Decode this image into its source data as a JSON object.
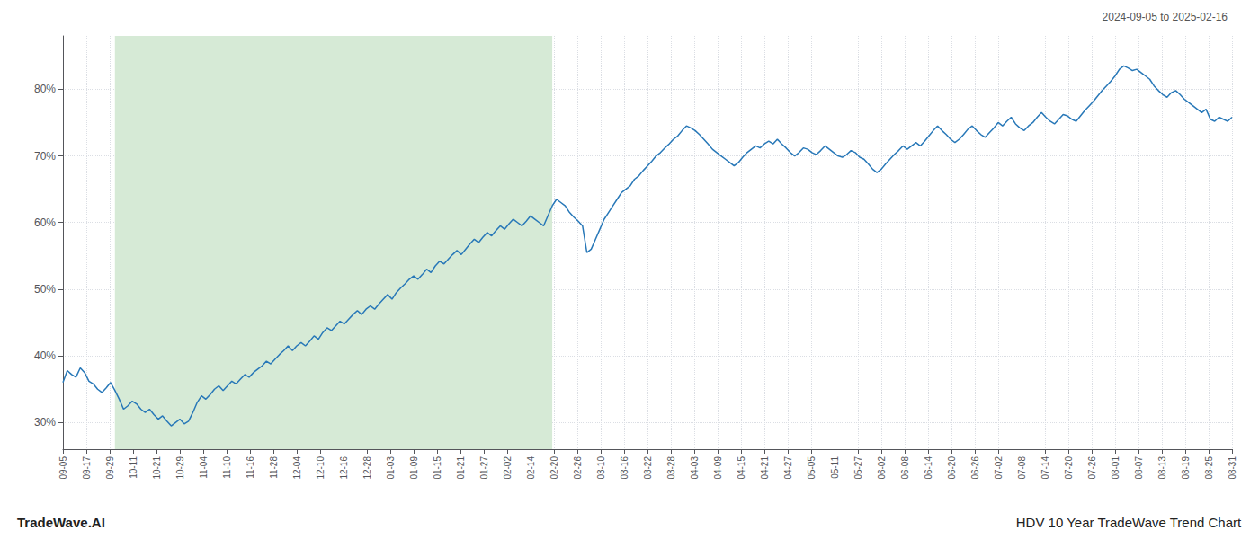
{
  "chart_data": {
    "type": "line",
    "title": "HDV 10 Year TradeWave Trend Chart",
    "annotations": [
      "2024-09-05 to 2025-02-16",
      "TradeWave.AI"
    ],
    "color": "#2878b8",
    "grid": true,
    "shaded_region": {
      "start": 12,
      "end": 113,
      "color": "#d6ead6"
    },
    "xlim": [
      0,
      270
    ],
    "xticks": [
      {
        "value": 0,
        "label": "09-05"
      },
      {
        "value": 5.4,
        "label": "09-17"
      },
      {
        "value": 10.8,
        "label": "09-29"
      },
      {
        "value": 16.2,
        "label": "10-11"
      },
      {
        "value": 21.6,
        "label": "10-21"
      },
      {
        "value": 27,
        "label": "10-29"
      },
      {
        "value": 32.4,
        "label": "11-04"
      },
      {
        "value": 37.8,
        "label": "11-10"
      },
      {
        "value": 43.2,
        "label": "11-16"
      },
      {
        "value": 48.6,
        "label": "11-28"
      },
      {
        "value": 54,
        "label": "12-04"
      },
      {
        "value": 59.4,
        "label": "12-10"
      },
      {
        "value": 64.8,
        "label": "12-16"
      },
      {
        "value": 70.2,
        "label": "12-28"
      },
      {
        "value": 75.6,
        "label": "01-03"
      },
      {
        "value": 81,
        "label": "01-09"
      },
      {
        "value": 86.4,
        "label": "01-15"
      },
      {
        "value": 91.8,
        "label": "01-21"
      },
      {
        "value": 97.2,
        "label": "01-27"
      },
      {
        "value": 102.6,
        "label": "02-02"
      },
      {
        "value": 108,
        "label": "02-14"
      },
      {
        "value": 113.4,
        "label": "02-20"
      },
      {
        "value": 118.8,
        "label": "02-26"
      },
      {
        "value": 124.2,
        "label": "03-10"
      },
      {
        "value": 129.6,
        "label": "03-16"
      },
      {
        "value": 135,
        "label": "03-22"
      },
      {
        "value": 140.4,
        "label": "03-28"
      },
      {
        "value": 145.8,
        "label": "04-03"
      },
      {
        "value": 151.2,
        "label": "04-09"
      },
      {
        "value": 156.6,
        "label": "04-15"
      },
      {
        "value": 162,
        "label": "04-21"
      },
      {
        "value": 167.4,
        "label": "04-27"
      },
      {
        "value": 172.8,
        "label": "05-05"
      },
      {
        "value": 178.2,
        "label": "05-11"
      },
      {
        "value": 183.6,
        "label": "05-27"
      },
      {
        "value": 189,
        "label": "06-02"
      },
      {
        "value": 194.4,
        "label": "06-08"
      },
      {
        "value": 199.8,
        "label": "06-14"
      },
      {
        "value": 205.2,
        "label": "06-20"
      },
      {
        "value": 210.6,
        "label": "06-26"
      },
      {
        "value": 216,
        "label": "07-02"
      },
      {
        "value": 221.4,
        "label": "07-08"
      },
      {
        "value": 226.8,
        "label": "07-14"
      },
      {
        "value": 232.2,
        "label": "07-20"
      },
      {
        "value": 237.6,
        "label": "07-26"
      },
      {
        "value": 243,
        "label": "08-01"
      },
      {
        "value": 248.4,
        "label": "08-07"
      },
      {
        "value": 253.8,
        "label": "08-13"
      },
      {
        "value": 259.2,
        "label": "08-19"
      },
      {
        "value": 264.6,
        "label": "08-25"
      },
      {
        "value": 270,
        "label": "08-31"
      }
    ],
    "ylim": [
      26,
      88
    ],
    "yticks": [
      {
        "value": 30,
        "label": "30%"
      },
      {
        "value": 40,
        "label": "40%"
      },
      {
        "value": 50,
        "label": "50%"
      },
      {
        "value": 60,
        "label": "60%"
      },
      {
        "value": 70,
        "label": "70%"
      },
      {
        "value": 80,
        "label": "80%"
      }
    ],
    "x": [
      0,
      1,
      2,
      3,
      4,
      5,
      6,
      7,
      8,
      9,
      10,
      11,
      12,
      13,
      14,
      15,
      16,
      17,
      18,
      19,
      20,
      21,
      22,
      23,
      24,
      25,
      26,
      27,
      28,
      29,
      30,
      31,
      32,
      33,
      34,
      35,
      36,
      37,
      38,
      39,
      40,
      41,
      42,
      43,
      44,
      45,
      46,
      47,
      48,
      49,
      50,
      51,
      52,
      53,
      54,
      55,
      56,
      57,
      58,
      59,
      60,
      61,
      62,
      63,
      64,
      65,
      66,
      67,
      68,
      69,
      70,
      71,
      72,
      73,
      74,
      75,
      76,
      77,
      78,
      79,
      80,
      81,
      82,
      83,
      84,
      85,
      86,
      87,
      88,
      89,
      90,
      91,
      92,
      93,
      94,
      95,
      96,
      97,
      98,
      99,
      100,
      101,
      102,
      103,
      104,
      105,
      106,
      107,
      108,
      109,
      110,
      111,
      112,
      113,
      114,
      115,
      116,
      117,
      118,
      119,
      120,
      121,
      122,
      123,
      124,
      125,
      126,
      127,
      128,
      129,
      130,
      131,
      132,
      133,
      134,
      135,
      136,
      137,
      138,
      139,
      140,
      141,
      142,
      143,
      144,
      145,
      146,
      147,
      148,
      149,
      150,
      151,
      152,
      153,
      154,
      155,
      156,
      157,
      158,
      159,
      160,
      161,
      162,
      163,
      164,
      165,
      166,
      167,
      168,
      169,
      170,
      171,
      172,
      173,
      174,
      175,
      176,
      177,
      178,
      179,
      180,
      181,
      182,
      183,
      184,
      185,
      186,
      187,
      188,
      189,
      190,
      191,
      192,
      193,
      194,
      195,
      196,
      197,
      198,
      199,
      200,
      201,
      202,
      203,
      204,
      205,
      206,
      207,
      208,
      209,
      210,
      211,
      212,
      213,
      214,
      215,
      216,
      217,
      218,
      219,
      220,
      221,
      222,
      223,
      224,
      225,
      226,
      227,
      228,
      229,
      230,
      231,
      232,
      233,
      234,
      235,
      236,
      237,
      238,
      239,
      240,
      241,
      242,
      243,
      244,
      245,
      246,
      247,
      248,
      249,
      250,
      251,
      252,
      253,
      254,
      255,
      256,
      257,
      258,
      259,
      260,
      261,
      262,
      263,
      264,
      265,
      266,
      267,
      268,
      269,
      270
    ],
    "values": [
      36.0,
      37.8,
      37.2,
      36.8,
      38.2,
      37.5,
      36.2,
      35.8,
      35.0,
      34.5,
      35.2,
      36.0,
      34.8,
      33.5,
      32.0,
      32.5,
      33.2,
      32.8,
      32.0,
      31.5,
      32.0,
      31.2,
      30.5,
      31.0,
      30.2,
      29.5,
      30.0,
      30.5,
      29.8,
      30.2,
      31.5,
      33.0,
      34.0,
      33.5,
      34.2,
      35.0,
      35.5,
      34.8,
      35.5,
      36.2,
      35.8,
      36.5,
      37.2,
      36.8,
      37.5,
      38.0,
      38.5,
      39.2,
      38.8,
      39.5,
      40.2,
      40.8,
      41.5,
      40.8,
      41.5,
      42.0,
      41.5,
      42.2,
      43.0,
      42.5,
      43.5,
      44.2,
      43.8,
      44.5,
      45.2,
      44.8,
      45.5,
      46.2,
      46.8,
      46.2,
      47.0,
      47.5,
      47.0,
      47.8,
      48.5,
      49.2,
      48.5,
      49.5,
      50.2,
      50.8,
      51.5,
      52.0,
      51.5,
      52.2,
      53.0,
      52.5,
      53.5,
      54.2,
      53.8,
      54.5,
      55.2,
      55.8,
      55.2,
      56.0,
      56.8,
      57.5,
      57.0,
      57.8,
      58.5,
      58.0,
      58.8,
      59.5,
      59.0,
      59.8,
      60.5,
      60.0,
      59.5,
      60.2,
      61.0,
      60.5,
      60.0,
      59.5,
      61.0,
      62.5,
      63.5,
      63.0,
      62.5,
      61.5,
      60.8,
      60.2,
      59.5,
      55.5,
      56.0,
      57.5,
      59.0,
      60.5,
      61.5,
      62.5,
      63.5,
      64.5,
      65.0,
      65.5,
      66.5,
      67.0,
      67.8,
      68.5,
      69.2,
      70.0,
      70.5,
      71.2,
      71.8,
      72.5,
      73.0,
      73.8,
      74.5,
      74.2,
      73.8,
      73.2,
      72.5,
      71.8,
      71.0,
      70.5,
      70.0,
      69.5,
      69.0,
      68.5,
      69.0,
      69.8,
      70.5,
      71.0,
      71.5,
      71.2,
      71.8,
      72.2,
      71.8,
      72.5,
      71.8,
      71.2,
      70.5,
      70.0,
      70.5,
      71.2,
      71.0,
      70.5,
      70.2,
      70.8,
      71.5,
      71.0,
      70.5,
      70.0,
      69.8,
      70.2,
      70.8,
      70.5,
      69.8,
      69.5,
      68.8,
      68.0,
      67.5,
      68.0,
      68.8,
      69.5,
      70.2,
      70.8,
      71.5,
      71.0,
      71.5,
      72.0,
      71.5,
      72.2,
      73.0,
      73.8,
      74.5,
      73.8,
      73.2,
      72.5,
      72.0,
      72.5,
      73.2,
      74.0,
      74.5,
      73.8,
      73.2,
      72.8,
      73.5,
      74.2,
      75.0,
      74.5,
      75.2,
      75.8,
      74.8,
      74.2,
      73.8,
      74.5,
      75.0,
      75.8,
      76.5,
      75.8,
      75.2,
      74.8,
      75.5,
      76.2,
      76.0,
      75.5,
      75.2,
      76.0,
      76.8,
      77.5,
      78.2,
      79.0,
      79.8,
      80.5,
      81.2,
      82.0,
      83.0,
      83.5,
      83.2,
      82.8,
      83.0,
      82.5,
      82.0,
      81.5,
      80.5,
      79.8,
      79.2,
      78.8,
      79.5,
      79.8,
      79.2,
      78.5,
      78.0,
      77.5,
      77.0,
      76.5,
      77.0,
      75.5,
      75.2,
      75.8,
      75.5,
      75.2,
      75.8
    ]
  }
}
